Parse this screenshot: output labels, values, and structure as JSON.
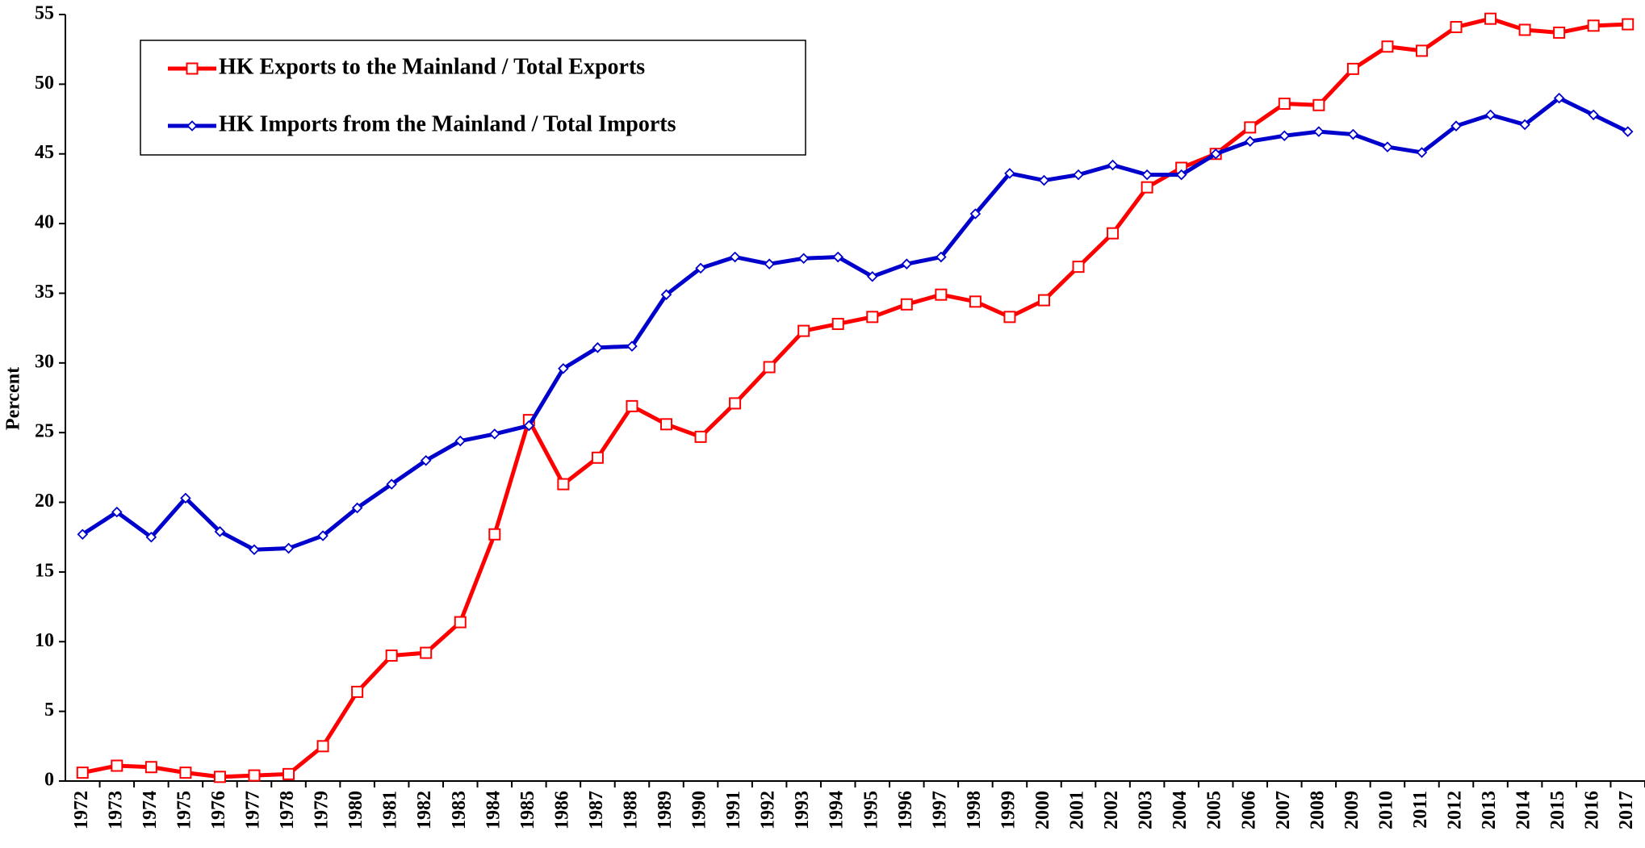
{
  "chart_data": {
    "type": "line",
    "y_label": "Percent",
    "categories": [
      "1972",
      "1973",
      "1974",
      "1975",
      "1976",
      "1977",
      "1978",
      "1979",
      "1980",
      "1981",
      "1982",
      "1983",
      "1984",
      "1985",
      "1986",
      "1987",
      "1988",
      "1989",
      "1990",
      "1991",
      "1992",
      "1993",
      "1994",
      "1995",
      "1996",
      "1997",
      "1998",
      "1999",
      "2000",
      "2001",
      "2002",
      "2003",
      "2004",
      "2005",
      "2006",
      "2007",
      "2008",
      "2009",
      "2010",
      "2011",
      "2012",
      "2013",
      "2014",
      "2015",
      "2016",
      "2017"
    ],
    "series": [
      {
        "name": "HK Exports to the Mainland / Total Exports",
        "color": "#ff0000",
        "marker": "square",
        "values": [
          0.6,
          1.1,
          1.0,
          0.6,
          0.3,
          0.4,
          0.5,
          2.5,
          6.4,
          9.0,
          9.2,
          11.4,
          17.7,
          25.9,
          21.3,
          23.2,
          26.9,
          25.6,
          24.7,
          27.1,
          29.7,
          32.3,
          32.8,
          33.3,
          34.2,
          34.9,
          34.4,
          33.3,
          34.5,
          36.9,
          39.3,
          42.6,
          44.0,
          45.0,
          46.9,
          48.6,
          48.5,
          51.1,
          52.7,
          52.4,
          54.1,
          54.7,
          53.9,
          53.7,
          54.2,
          54.3
        ]
      },
      {
        "name": "HK Imports from the Mainland / Total Imports",
        "color": "#0000cc",
        "marker": "diamond",
        "values": [
          17.7,
          19.3,
          17.5,
          20.3,
          17.9,
          16.6,
          16.7,
          17.6,
          19.6,
          21.3,
          23.0,
          24.4,
          24.9,
          25.5,
          29.6,
          31.1,
          31.2,
          34.9,
          36.8,
          37.6,
          37.1,
          37.5,
          37.6,
          36.2,
          37.1,
          37.6,
          40.7,
          43.6,
          43.1,
          43.5,
          44.2,
          43.5,
          43.5,
          45.0,
          45.9,
          46.3,
          46.6,
          46.4,
          45.5,
          45.1,
          47.0,
          47.8,
          47.1,
          49.0,
          47.8,
          46.6
        ]
      }
    ],
    "ylim": [
      0,
      55
    ],
    "yticks": [
      0,
      5,
      10,
      15,
      20,
      25,
      30,
      35,
      40,
      45,
      50,
      55
    ],
    "grid": false,
    "legend": "upper left"
  }
}
